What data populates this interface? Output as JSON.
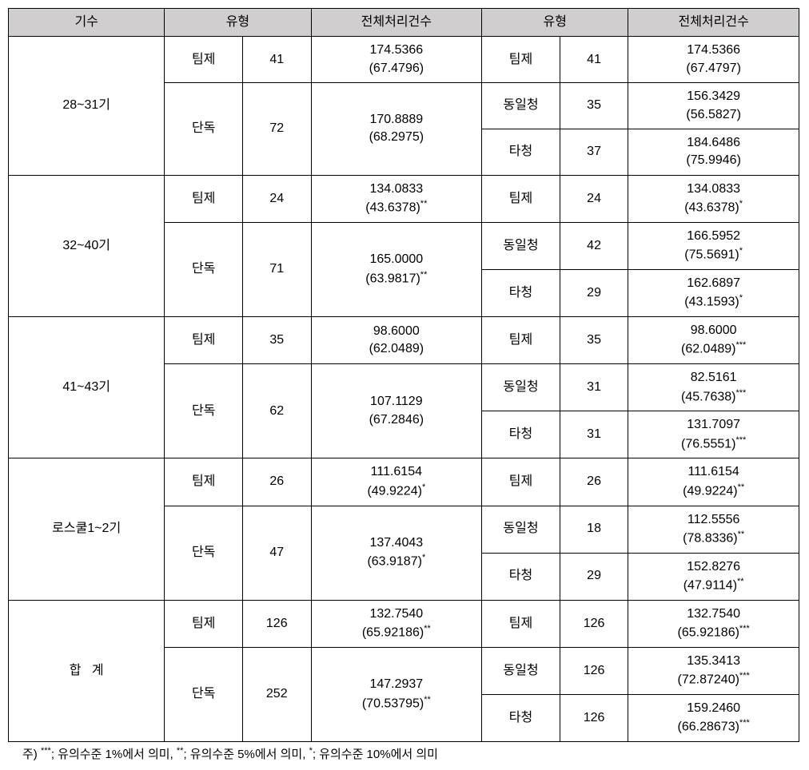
{
  "headers": {
    "gisu": "기수",
    "type_a": "유형",
    "stat_a": "전체처리건수",
    "type_b": "유형",
    "stat_b": "전체처리건수"
  },
  "groups": [
    {
      "label": "28~31기",
      "left": [
        {
          "type": "팀제",
          "n": "41",
          "val": "174.5366",
          "paren": "(67.4796)",
          "sig": ""
        },
        {
          "type": "단독",
          "n": "72",
          "val": "170.8889",
          "paren": "(68.2975)",
          "sig": "",
          "span": 2
        }
      ],
      "right": [
        {
          "type": "팀제",
          "n": "41",
          "val": "174.5366",
          "paren": "(67.4797)",
          "sig": ""
        },
        {
          "type": "동일청",
          "n": "35",
          "val": "156.3429",
          "paren": "(56.5827)",
          "sig": ""
        },
        {
          "type": "타청",
          "n": "37",
          "val": "184.6486",
          "paren": "(75.9946)",
          "sig": ""
        }
      ]
    },
    {
      "label": "32~40기",
      "left": [
        {
          "type": "팀제",
          "n": "24",
          "val": "134.0833",
          "paren": "(43.6378)",
          "sig": "**"
        },
        {
          "type": "단독",
          "n": "71",
          "val": "165.0000",
          "paren": "(63.9817)",
          "sig": "**",
          "span": 2
        }
      ],
      "right": [
        {
          "type": "팀제",
          "n": "24",
          "val": "134.0833",
          "paren": "(43.6378)",
          "sig": "*"
        },
        {
          "type": "동일청",
          "n": "42",
          "val": "166.5952",
          "paren": "(75.5691)",
          "sig": "*"
        },
        {
          "type": "타청",
          "n": "29",
          "val": "162.6897",
          "paren": "(43.1593)",
          "sig": "*"
        }
      ]
    },
    {
      "label": "41~43기",
      "left": [
        {
          "type": "팀제",
          "n": "35",
          "val": "98.6000",
          "paren": "(62.0489)",
          "sig": ""
        },
        {
          "type": "단독",
          "n": "62",
          "val": "107.1129",
          "paren": "(67.2846)",
          "sig": "",
          "span": 2
        }
      ],
      "right": [
        {
          "type": "팀제",
          "n": "35",
          "val": "98.6000",
          "paren": "(62.0489)",
          "sig": "***"
        },
        {
          "type": "동일청",
          "n": "31",
          "val": "82.5161",
          "paren": "(45.7638)",
          "sig": "***"
        },
        {
          "type": "타청",
          "n": "31",
          "val": "131.7097",
          "paren": "(76.5551)",
          "sig": "***"
        }
      ]
    },
    {
      "label": "로스쿨1~2기",
      "left": [
        {
          "type": "팀제",
          "n": "26",
          "val": "111.6154",
          "paren": "(49.9224)",
          "sig": "*"
        },
        {
          "type": "단독",
          "n": "47",
          "val": "137.4043",
          "paren": "(63.9187)",
          "sig": "*",
          "span": 2
        }
      ],
      "right": [
        {
          "type": "팀제",
          "n": "26",
          "val": "111.6154",
          "paren": "(49.9224)",
          "sig": "**"
        },
        {
          "type": "동일청",
          "n": "18",
          "val": "112.5556",
          "paren": "(78.8336)",
          "sig": "**"
        },
        {
          "type": "타청",
          "n": "29",
          "val": "152.8276",
          "paren": "(47.9114)",
          "sig": "**"
        }
      ]
    },
    {
      "label": "합   계",
      "left": [
        {
          "type": "팀제",
          "n": "126",
          "val": "132.7540",
          "paren": "(65.92186)",
          "sig": "**"
        },
        {
          "type": "단독",
          "n": "252",
          "val": "147.2937",
          "paren": "(70.53795)",
          "sig": "**",
          "span": 2
        }
      ],
      "right": [
        {
          "type": "팀제",
          "n": "126",
          "val": "132.7540",
          "paren": "(65.92186)",
          "sig": "***"
        },
        {
          "type": "동일청",
          "n": "126",
          "val": "135.3413",
          "paren": "(72.87240)",
          "sig": "***"
        },
        {
          "type": "타청",
          "n": "126",
          "val": "159.2460",
          "paren": "(66.28673)",
          "sig": "***"
        }
      ]
    }
  ],
  "footnote": {
    "prefix": "주) ",
    "s3": "***",
    "s3txt": "; 유의수준 1%에서 의미, ",
    "s2": "**",
    "s2txt": "; 유의수준 5%에서 의미, ",
    "s1": "*",
    "s1txt": "; 유의수준 10%에서 의미"
  }
}
